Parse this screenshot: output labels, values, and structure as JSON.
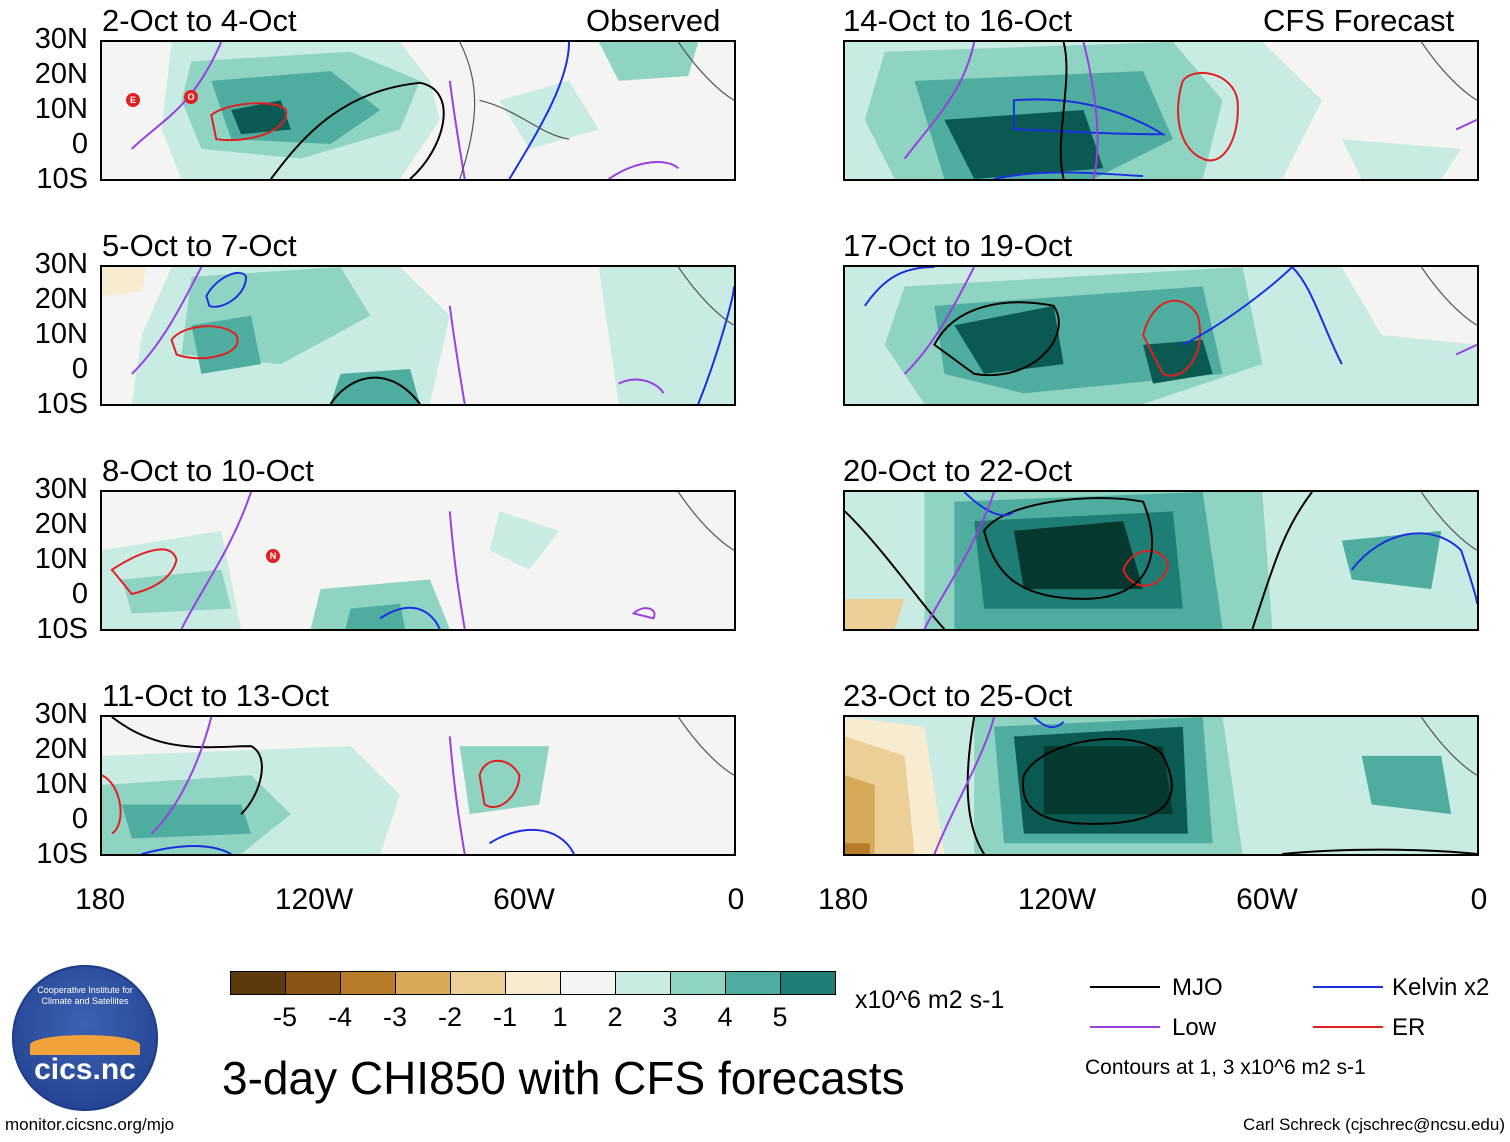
{
  "panels": [
    {
      "period": "2-Oct to 4-Oct",
      "label": "Observed"
    },
    {
      "period": "14-Oct to 16-Oct",
      "label": "CFS Forecast"
    },
    {
      "period": "5-Oct to 7-Oct",
      "label": ""
    },
    {
      "period": "17-Oct to 19-Oct",
      "label": ""
    },
    {
      "period": "8-Oct to 10-Oct",
      "label": ""
    },
    {
      "period": "20-Oct to 22-Oct",
      "label": ""
    },
    {
      "period": "11-Oct to 13-Oct",
      "label": ""
    },
    {
      "period": "23-Oct to 25-Oct",
      "label": ""
    }
  ],
  "lat_labels": [
    "30N",
    "20N",
    "10N",
    "0",
    "10S"
  ],
  "lon_labels": [
    "180",
    "120W",
    "60W",
    "0"
  ],
  "colorbar": {
    "unit": "x10^6 m2 s-1",
    "ticks": [
      "-5",
      "-4",
      "-3",
      "-2",
      "-1",
      "1",
      "2",
      "3",
      "4",
      "5"
    ],
    "colors": [
      "#5b3a0e",
      "#8a5514",
      "#b87b2a",
      "#d9a95a",
      "#ebcf96",
      "#f7eccf",
      "#f4f4f4",
      "#c8ebe3",
      "#8fd3c3",
      "#4fada0",
      "#1e7d74",
      "#0b5a52",
      "#05392f"
    ]
  },
  "legend": {
    "items": [
      {
        "name": "MJO",
        "color": "#000000"
      },
      {
        "name": "Kelvin x2",
        "color": "#1a2fe0"
      },
      {
        "name": "Low",
        "color": "#9a3fe0"
      },
      {
        "name": "ER",
        "color": "#e02020"
      }
    ],
    "note": "Contours at 1, 3 x10^6 m2 s-1"
  },
  "main_title": "3-day CHI850 with CFS forecasts",
  "logo_text": "cics.nc",
  "logo_ring": "Cooperative Institute for Climate and Satellites",
  "footer_left": "monitor.cicsnc.org/mjo",
  "footer_right": "Carl Schreck (cjschrec@ncsu.edu)",
  "storm_markers": [
    {
      "panel": 0,
      "letters": [
        "E",
        "O"
      ]
    },
    {
      "panel": 4,
      "letters": [
        "N"
      ]
    }
  ]
}
